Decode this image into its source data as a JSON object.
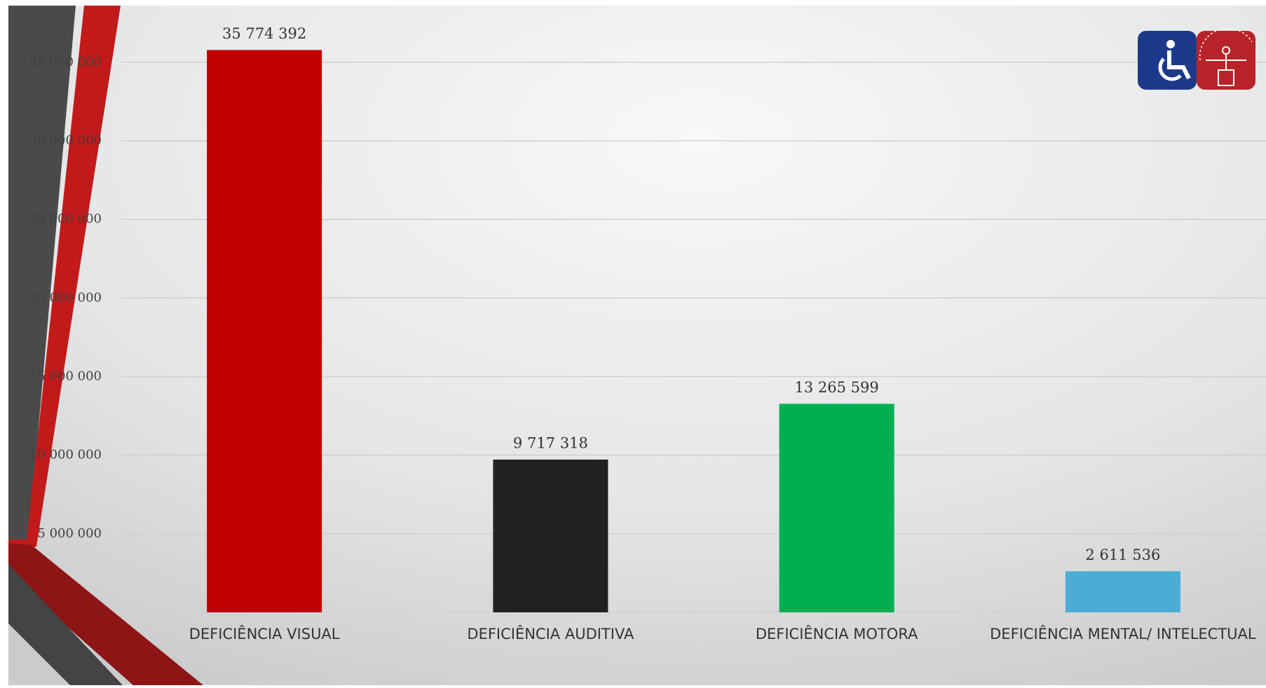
{
  "chart_data": {
    "type": "bar",
    "categories": [
      "DEFICIÊNCIA VISUAL",
      "DEFICIÊNCIA AUDITIVA",
      "DEFICIÊNCIA MOTORA",
      "DEFICIÊNCIA MENTAL/ INTELECTUAL"
    ],
    "values": [
      35774392,
      9717318,
      13265599,
      2611536
    ],
    "value_labels": [
      "35 774 392",
      "9 717 318",
      "13 265 599",
      "2 611 536"
    ],
    "colors": [
      "#c00000",
      "#222222",
      "#00b050",
      "#4bacd6"
    ],
    "ylim": [
      0,
      38600000
    ],
    "yticks": [
      {
        "value": 0,
        "label": "-"
      },
      {
        "value": 5000000,
        "label": "5 000 000"
      },
      {
        "value": 10000000,
        "label": "10 000 000"
      },
      {
        "value": 15000000,
        "label": "15 000 000"
      },
      {
        "value": 20000000,
        "label": "20 000 000"
      },
      {
        "value": 25000000,
        "label": "25 000 000"
      },
      {
        "value": 30000000,
        "label": "30 000 000"
      },
      {
        "value": 35000000,
        "label": "35 000 000"
      }
    ],
    "grid": true
  }
}
